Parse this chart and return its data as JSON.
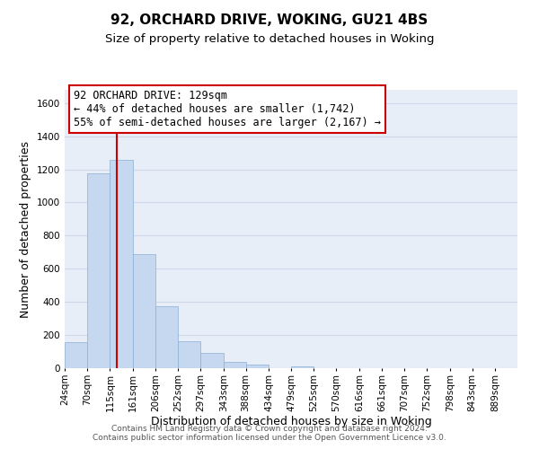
{
  "title": "92, ORCHARD DRIVE, WOKING, GU21 4BS",
  "subtitle": "Size of property relative to detached houses in Woking",
  "xlabel": "Distribution of detached houses by size in Woking",
  "ylabel": "Number of detached properties",
  "footer_line1": "Contains HM Land Registry data © Crown copyright and database right 2024.",
  "footer_line2": "Contains public sector information licensed under the Open Government Licence v3.0.",
  "bar_edges": [
    24,
    70,
    115,
    161,
    206,
    252,
    297,
    343,
    388,
    434,
    479,
    525,
    570,
    616,
    661,
    707,
    752,
    798,
    843,
    889,
    934
  ],
  "bar_heights": [
    155,
    1175,
    1260,
    690,
    375,
    165,
    90,
    37,
    22,
    0,
    13,
    0,
    0,
    0,
    0,
    0,
    0,
    0,
    0,
    0
  ],
  "bar_color": "#c5d8f0",
  "bar_edge_color": "#8aafd4",
  "property_line_x": 129,
  "property_line_color": "#cc0000",
  "ylim": [
    0,
    1680
  ],
  "yticks": [
    0,
    200,
    400,
    600,
    800,
    1000,
    1200,
    1400,
    1600
  ],
  "annotation_title": "92 ORCHARD DRIVE: 129sqm",
  "annotation_line1": "← 44% of detached houses are smaller (1,742)",
  "annotation_line2": "55% of semi-detached houses are larger (2,167) →",
  "grid_color": "#d0d8e8",
  "plot_bg_color": "#e8eef8",
  "background_color": "#ffffff",
  "tick_label_fontsize": 7.5,
  "title_fontsize": 11,
  "subtitle_fontsize": 9.5
}
